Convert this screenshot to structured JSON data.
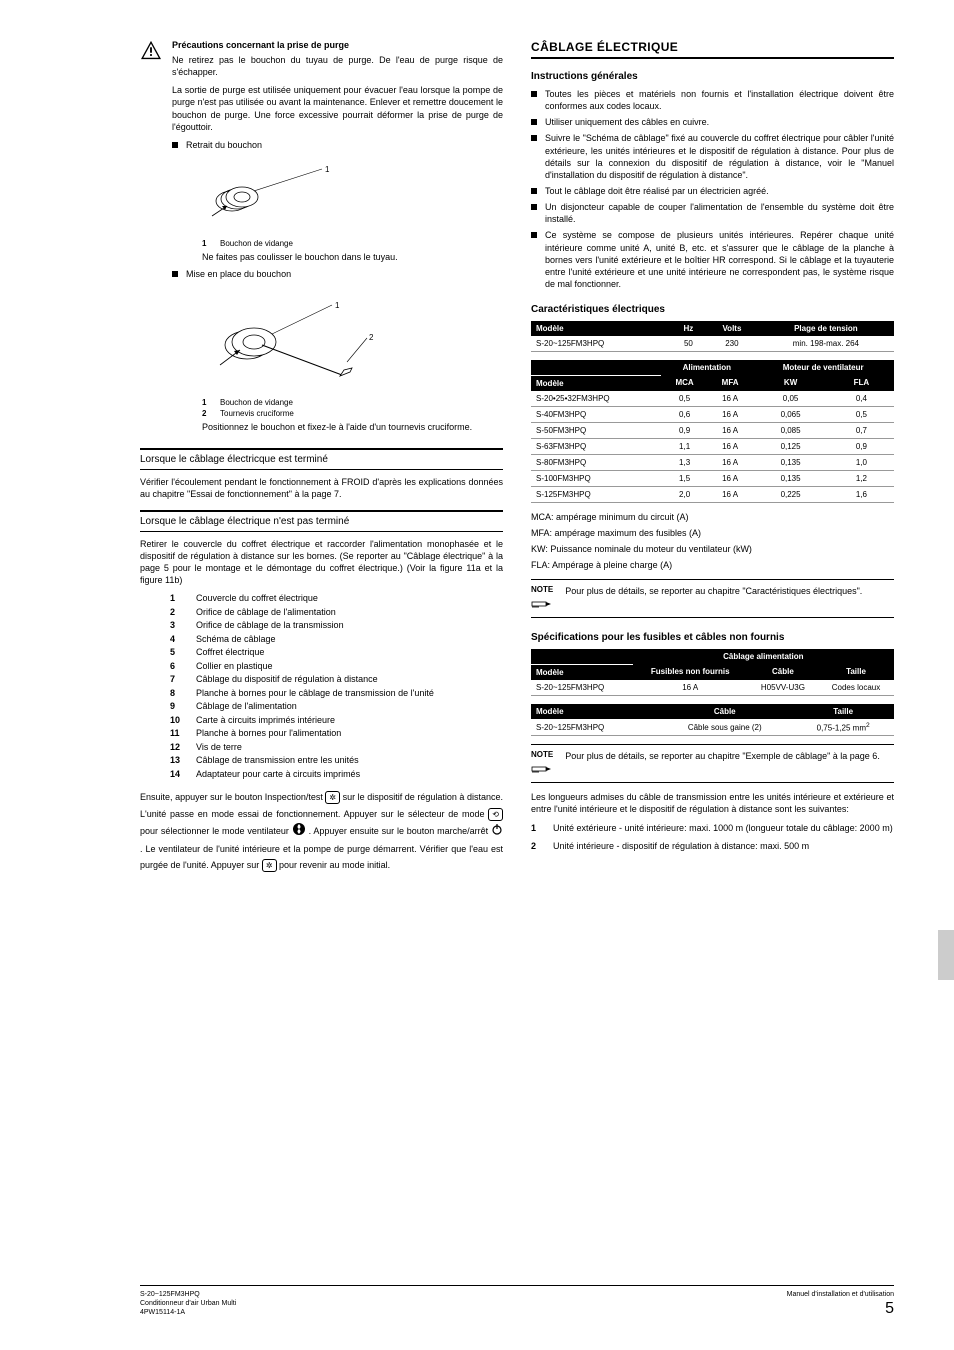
{
  "left": {
    "warning": {
      "title": "Précautions concernant la prise de purge",
      "p1": "Ne retirez pas le bouchon du tuyau de purge. De l'eau de purge risque de s'échapper.",
      "p2": "La sortie de purge est utilisée uniquement pour évacuer l'eau lorsque la pompe de purge n'est pas utilisée ou avant la maintenance. Enlever et remettre doucement le bouchon de purge. Une force excessive pourrait déformer la prise de purge de l'égouttoir.",
      "b1": "Retrait du bouchon",
      "cap1_n": "1",
      "cap1_t": "Bouchon de vidange",
      "sub1": "Ne faites pas coulisser le bouchon dans le tuyau.",
      "b2": "Mise en place du bouchon",
      "cap2a_n": "1",
      "cap2a_t": "Bouchon de vidange",
      "cap2b_n": "2",
      "cap2b_t": "Tournevis cruciforme",
      "sub2": "Positionnez le bouchon et fixez-le à l'aide d'un tournevis cruciforme."
    },
    "sec1": {
      "title": "Lorsque le câblage électricque est terminé",
      "p": "Vérifier l'écoulement pendant le fonctionnement à FROID d'après les explications données au chapitre \"Essai de fonctionnement\" à la page 7."
    },
    "sec2": {
      "title": "Lorsque le câblage électrique n'est pas terminé",
      "p": "Retirer le couvercle du coffret électrique et raccorder l'alimentation monophasée et le dispositif de régulation à distance sur les bornes. (Se reporter au \"Câblage électrique\" à la page 5 pour le montage et le démontage du coffret électrique.) (Voir la figure 11a et la figure 11b)",
      "items": [
        {
          "n": "1",
          "t": "Couvercle du coffret électrique"
        },
        {
          "n": "2",
          "t": "Orifice de câblage de l'alimentation"
        },
        {
          "n": "3",
          "t": "Orifice de câblage de la transmission"
        },
        {
          "n": "4",
          "t": "Schéma de câblage"
        },
        {
          "n": "5",
          "t": "Coffret électrique"
        },
        {
          "n": "6",
          "t": "Collier en plastique"
        },
        {
          "n": "7",
          "t": "Câblage du dispositif de régulation à distance"
        },
        {
          "n": "8",
          "t": "Planche à bornes pour le câblage de transmission de l'unité"
        },
        {
          "n": "9",
          "t": "Câblage de l'alimentation"
        },
        {
          "n": "10",
          "t": "Carte à circuits imprimés intérieure"
        },
        {
          "n": "11",
          "t": "Planche à bornes pour l'alimentation"
        },
        {
          "n": "12",
          "t": "Vis de terre"
        },
        {
          "n": "13",
          "t": "Câblage de transmission entre les unités"
        },
        {
          "n": "14",
          "t": "Adaptateur pour carte à circuits imprimés"
        }
      ],
      "tail1": "Ensuite, appuyer sur le bouton Inspection/test ",
      "tail2": " sur le dispositif de régulation à distance. L'unité passe en mode essai de fonctionnement. Appuyer sur le sélecteur de mode ",
      "tail3": " pour sélectionner le mode ventilateur ",
      "tail4": ". Appuyer ensuite sur le bouton marche/arrêt ",
      "tail5": ". Le ventilateur de l'unité intérieure et la pompe de purge démarrent. Vérifier que l'eau est purgée de l'unité. Appuyer sur ",
      "tail6": " pour revenir au mode initial."
    }
  },
  "right": {
    "h1": "CÂBLAGE ÉLECTRIQUE",
    "instr": {
      "title": "Instructions générales",
      "items": [
        "Toutes les pièces et matériels non fournis et l'installation électrique doivent être conformes aux codes locaux.",
        "Utiliser uniquement des câbles en cuivre.",
        "Suivre le \"Schéma de câblage\" fixé au couvercle du coffret électrique pour câbler l'unité extérieure, les unités intérieures et le dispositif de régulation à distance. Pour plus de détails sur la connexion du dispositif de régulation à distance, voir le \"Manuel d'installation du dispositif de régulation à distance\".",
        "Tout le câblage doit être réalisé par un électricien agréé.",
        "Un disjoncteur capable de couper l'alimentation de l'ensemble du système doit être installé.",
        "Ce système se compose de plusieurs unités intérieures. Repérer chaque unité intérieure comme unité A, unité B, etc. et s'assurer que le câblage de la planche à bornes vers l'unité extérieure et le boîtier HR correspond. Si le câblage et la tuyauterie entre l'unité extérieure et une unité intérieure ne correspondent pas, le système risque de mal fonctionner."
      ]
    },
    "elec": {
      "title": "Caractéristiques électriques",
      "t1": {
        "h": [
          "Modèle",
          "Hz",
          "Volts",
          "Plage de tension"
        ],
        "r": [
          "S-20~125FM3HPQ",
          "50",
          "230",
          "min. 198-max. 264"
        ]
      },
      "t2": {
        "h1": [
          "",
          "Alimentation",
          "Moteur de ventilateur"
        ],
        "h2": [
          "Modèle",
          "MCA",
          "MFA",
          "KW",
          "FLA"
        ],
        "rows": [
          [
            "S-20•25•32FM3HPQ",
            "0,5",
            "16 A",
            "0,05",
            "0,4"
          ],
          [
            "S-40FM3HPQ",
            "0,6",
            "16 A",
            "0,065",
            "0,5"
          ],
          [
            "S-50FM3HPQ",
            "0,9",
            "16 A",
            "0,085",
            "0,7"
          ],
          [
            "S-63FM3HPQ",
            "1,1",
            "16 A",
            "0,125",
            "0,9"
          ],
          [
            "S-80FM3HPQ",
            "1,3",
            "16 A",
            "0,135",
            "1,0"
          ],
          [
            "S-100FM3HPQ",
            "1,5",
            "16 A",
            "0,135",
            "1,2"
          ],
          [
            "S-125FM3HPQ",
            "2,0",
            "16 A",
            "0,225",
            "1,6"
          ]
        ]
      },
      "abbr": [
        "MCA: ampérage minimum du circuit (A)",
        "MFA: ampérage maximum des fusibles (A)",
        "KW: Puissance nominale du moteur du ventilateur (kW)",
        "FLA: Ampérage à pleine charge (A)"
      ],
      "note": "Pour plus de détails, se reporter au chapitre \"Caractéristiques électriques\"."
    },
    "spec": {
      "title": "Spécifications pour les fusibles et câbles non fournis",
      "t1": {
        "g": "Câblage alimentation",
        "h": [
          "Modèle",
          "Fusibles non fournis",
          "Câble",
          "Taille"
        ],
        "r": [
          "S-20~125FM3HPQ",
          "16 A",
          "H05VV-U3G",
          "Codes locaux"
        ]
      },
      "t2": {
        "h": [
          "Modèle",
          "Câble",
          "Taille"
        ],
        "r": [
          "S-20~125FM3HPQ",
          "Câble sous gaine (2)",
          "0,75-1,25 mm"
        ],
        "sup": "2"
      },
      "note": "Pour plus de détails, se reporter au chapitre \"Exemple de câblage\" à la page 6.",
      "p": "Les longueurs admises du câble de transmission entre les unités intérieure et extérieure et entre l'unité intérieure et le dispositif de régulation à distance sont les suivantes:",
      "ol": [
        {
          "n": "1",
          "t": "Unité extérieure - unité intérieure: maxi. 1000 m (longueur totale du câblage: 2000 m)"
        },
        {
          "n": "2",
          "t": "Unité intérieure - dispositif de régulation à distance: maxi. 500 m"
        }
      ]
    }
  },
  "footer": {
    "l1": "S-20~125FM3HPQ",
    "l2": "Conditionneur d'air Urban Multi",
    "l3": "4PW15114-1A",
    "r1": "Manuel d'installation et d'utilisation",
    "page": "5"
  },
  "note_label": "NOTE"
}
